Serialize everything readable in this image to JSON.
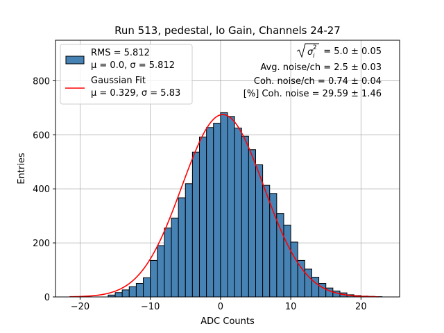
{
  "chart_data": {
    "type": "bar",
    "title": "Run 513, pedestal, lo Gain, Channels 24-27",
    "xlabel": "ADC Counts",
    "ylabel": "Entries",
    "xlim": [
      -23.5,
      25.5
    ],
    "ylim": [
      0,
      950
    ],
    "grid": true,
    "xticks": [
      -20,
      -10,
      0,
      10,
      20
    ],
    "yticks": [
      0,
      200,
      400,
      600,
      800
    ],
    "xtick_labels": [
      "−20",
      "−10",
      "0",
      "10",
      "20"
    ],
    "ytick_labels": [
      "0",
      "200",
      "400",
      "600",
      "800"
    ],
    "bin_start": -16,
    "bin_width": 1,
    "series": [
      {
        "name": "RMS = 5.812",
        "values": [
          7,
          16,
          26,
          38,
          50,
          71,
          135,
          190,
          255,
          292,
          367,
          419,
          536,
          592,
          627,
          643,
          682,
          668,
          625,
          595,
          545,
          489,
          413,
          383,
          309,
          266,
          203,
          135,
          103,
          73,
          50,
          33,
          22,
          15,
          8,
          5,
          3,
          2,
          1
        ]
      }
    ],
    "fit": {
      "name": "Gaussian Fit",
      "mu": 0.329,
      "sigma": 5.83,
      "amplitude": 675,
      "x_range": [
        -21.5,
        22.5
      ],
      "color": "#ff0000"
    },
    "legend": {
      "position": "top-left",
      "entries": [
        {
          "line1": "RMS = 5.812",
          "line2": "μ = 0.0, σ = 5.812",
          "type": "patch",
          "color": "#4682b4"
        },
        {
          "line1": "Gaussian Fit",
          "line2": "μ = 0.329, σ = 5.83",
          "type": "line",
          "color": "#ff0000"
        }
      ]
    },
    "annotations": {
      "line1_value": " = 5.0 ± 0.05",
      "line2": "Avg. noise/ch = 2.5 ± 0.03",
      "line3": "Coh. noise/ch = 0.74 ± 0.04",
      "line4": "[%] Coh. noise = 29.59 ± 1.46"
    }
  }
}
